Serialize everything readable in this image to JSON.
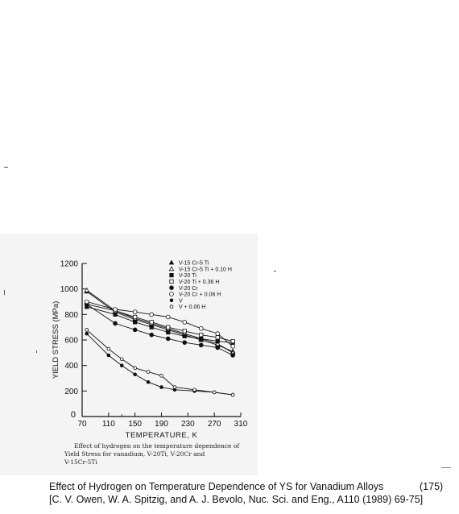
{
  "chart_data": {
    "type": "line",
    "title": "",
    "xlabel": "TEMPERATURE, K",
    "ylabel": "YIELD STRESS (MPa)",
    "x_ticks": [
      "70",
      "110",
      "150",
      "190",
      "230",
      "270",
      "310"
    ],
    "y_ticks": [
      "200",
      "400",
      "600",
      "800",
      "1000",
      "1200"
    ],
    "xlim": [
      70,
      310
    ],
    "ylim": [
      0,
      1200
    ],
    "grid": false,
    "legend_position": "top-right",
    "series": [
      {
        "name": "V-15 Cr-5 Ti",
        "marker": "triangle-filled",
        "x": [
          77,
          120,
          150,
          175,
          200,
          225,
          250,
          275,
          298
        ],
        "y": [
          980,
          820,
          760,
          720,
          680,
          640,
          600,
          560,
          510
        ]
      },
      {
        "name": "V-15 Cr-5 Ti + 0.10 H",
        "marker": "triangle-open",
        "x": [
          77,
          120,
          150,
          175,
          200,
          225,
          250,
          275,
          298
        ],
        "y": [
          990,
          830,
          770,
          730,
          690,
          650,
          610,
          570,
          500
        ]
      },
      {
        "name": "V-20 Ti",
        "marker": "square-filled",
        "x": [
          77,
          120,
          150,
          175,
          200,
          225,
          250,
          275,
          298
        ],
        "y": [
          860,
          800,
          740,
          700,
          660,
          630,
          610,
          590,
          580
        ]
      },
      {
        "name": "V-20 Ti + 0.36 H",
        "marker": "square-open",
        "x": [
          77,
          120,
          150,
          175,
          200,
          225,
          250,
          275,
          298
        ],
        "y": [
          880,
          830,
          780,
          740,
          700,
          670,
          640,
          620,
          590
        ]
      },
      {
        "name": "V-20 Cr",
        "marker": "circle-filled",
        "x": [
          77,
          120,
          150,
          175,
          200,
          225,
          250,
          275,
          298
        ],
        "y": [
          880,
          730,
          680,
          640,
          610,
          580,
          560,
          540,
          480
        ]
      },
      {
        "name": "V-20 Cr + 0.06 H",
        "marker": "circle-open",
        "x": [
          77,
          120,
          150,
          175,
          200,
          225,
          250,
          275,
          298
        ],
        "y": [
          900,
          840,
          820,
          800,
          780,
          740,
          690,
          650,
          550
        ]
      },
      {
        "name": "V",
        "marker": "dot-filled",
        "x": [
          77,
          110,
          130,
          150,
          170,
          190,
          210,
          240,
          270,
          298
        ],
        "y": [
          650,
          480,
          400,
          330,
          270,
          230,
          210,
          200,
          190,
          170
        ]
      },
      {
        "name": "V + 0.06 H",
        "marker": "dot-open",
        "x": [
          77,
          110,
          130,
          150,
          170,
          190,
          210,
          240,
          270,
          298
        ],
        "y": [
          680,
          530,
          450,
          380,
          350,
          320,
          230,
          210,
          190,
          170
        ]
      }
    ]
  },
  "figure_caption": {
    "line1": "Effect of hydrogen on the temperature dependence of",
    "line2": "Yield Stress for vanadium, V-20Ti, V-20Cr and",
    "line3": "V-15Cr-5Ti"
  },
  "slide": {
    "title": "Effect of Hydrogen on Temperature Dependence of YS for Vanadium Alloys",
    "reference": "[C. V. Owen, W. A. Spitzig, and A. J. Bevolo, Nuc. Sci. and Eng., A110 (1989) 69-75]",
    "page_number": "(175)"
  }
}
